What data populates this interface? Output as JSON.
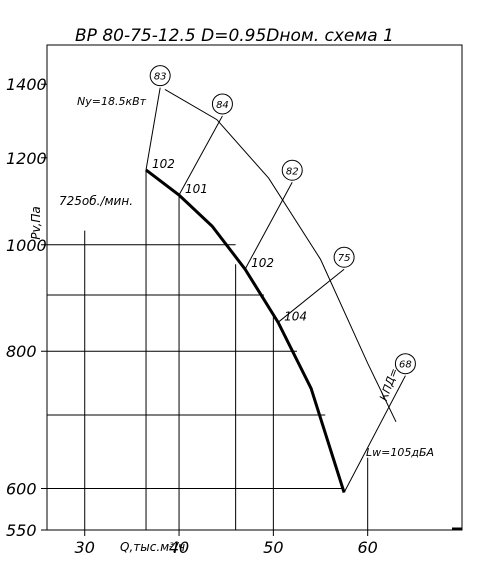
{
  "chart_data": {
    "type": "line",
    "title": "ВР 80-75-12.5 D=0.95Dном. схема 1",
    "xlabel": "Q,тыс.м³/ч",
    "ylabel": "Pv,Па",
    "x_ticks": [
      30,
      40,
      50,
      60
    ],
    "y_ticks": [
      550,
      600,
      800,
      1000,
      1200,
      1400
    ],
    "xlim": [
      26,
      70
    ],
    "ylim": [
      550,
      1520
    ],
    "y_scale": "log",
    "speed_label": "725об./мин.",
    "power_label": "Ny=18.5кВт",
    "noise_label": "Lw=105дБА",
    "efficiency_label": "КПД=",
    "series": [
      {
        "name": "",
        "x": [
          36.5,
          40,
          43.5,
          47,
          50.5,
          54,
          57.5
        ],
        "y": [
          1170,
          1110,
          1040,
          950,
          850,
          740,
          595
        ]
      }
    ],
    "curve_labels": [
      {
        "text": "102",
        "x": 36.5,
        "y": 1170
      },
      {
        "text": "101",
        "x": 40,
        "y": 1110
      },
      {
        "text": "102",
        "x": 47,
        "y": 950
      },
      {
        "text": "104",
        "x": 50.5,
        "y": 850
      }
    ],
    "efficiency_markers": [
      {
        "text": "83",
        "x": 38,
        "y": 1390
      },
      {
        "text": "84",
        "x": 44.6,
        "y": 1310
      },
      {
        "text": "82",
        "x": 52,
        "y": 1140
      },
      {
        "text": "75",
        "x": 57.5,
        "y": 950
      },
      {
        "text": "68",
        "x": 64,
        "y": 760
      }
    ]
  }
}
